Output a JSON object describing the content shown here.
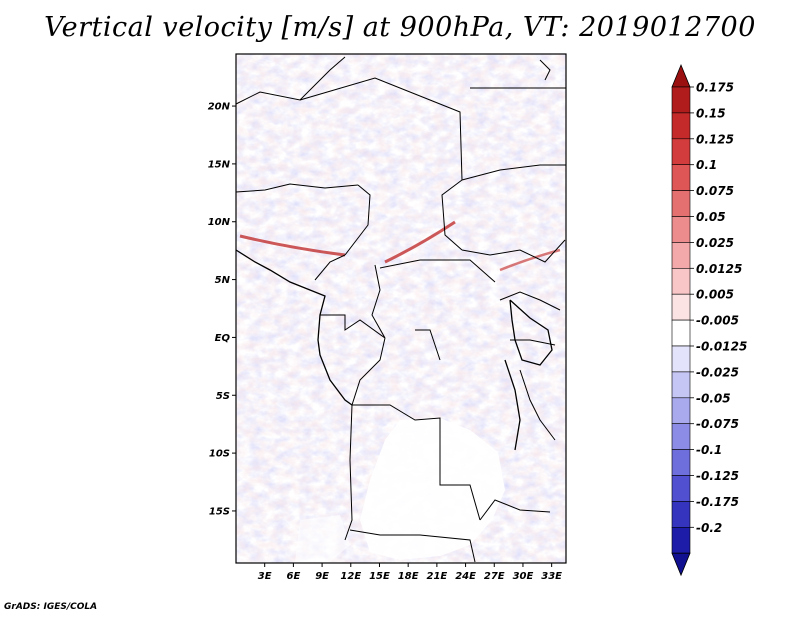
{
  "title": "Vertical velocity [m/s] at 900hPa, VT: 2019012700",
  "credit": "GrADS: IGES/COLA",
  "map": {
    "lat_labels": [
      "20N",
      "15N",
      "10N",
      "5N",
      "EQ",
      "5S",
      "10S",
      "15S"
    ],
    "lat_values": [
      20,
      15,
      10,
      5,
      0,
      -5,
      -10,
      -15
    ],
    "lon_labels": [
      "3E",
      "6E",
      "9E",
      "12E",
      "15E",
      "18E",
      "21E",
      "24E",
      "27E",
      "30E",
      "33E"
    ],
    "lon_values": [
      3,
      6,
      9,
      12,
      15,
      18,
      21,
      24,
      27,
      30,
      33
    ],
    "lon_range": [
      0,
      34.5
    ],
    "lat_range": [
      -19.5,
      24.5
    ]
  },
  "colorbar": {
    "labels": [
      "0.175",
      "0.15",
      "0.125",
      "0.1",
      "0.075",
      "0.05",
      "0.025",
      "0.0125",
      "0.005",
      "-0.005",
      "-0.0125",
      "-0.025",
      "-0.05",
      "-0.075",
      "-0.1",
      "-0.125",
      "-0.175",
      "-0.2"
    ],
    "colors": [
      "#b01c1c",
      "#c52a2a",
      "#d23c3c",
      "#de5656",
      "#e57070",
      "#ec8c8c",
      "#f3a9a9",
      "#f8c6c6",
      "#fce3e3",
      "#ffffff",
      "#e3e3fc",
      "#c6c6f5",
      "#a9a9ee",
      "#8c8ce6",
      "#6e6edc",
      "#5050d0",
      "#3434bf",
      "#1c1ca8"
    ],
    "top_arrow_color": "#9a1010",
    "bottom_arrow_color": "#101090"
  }
}
